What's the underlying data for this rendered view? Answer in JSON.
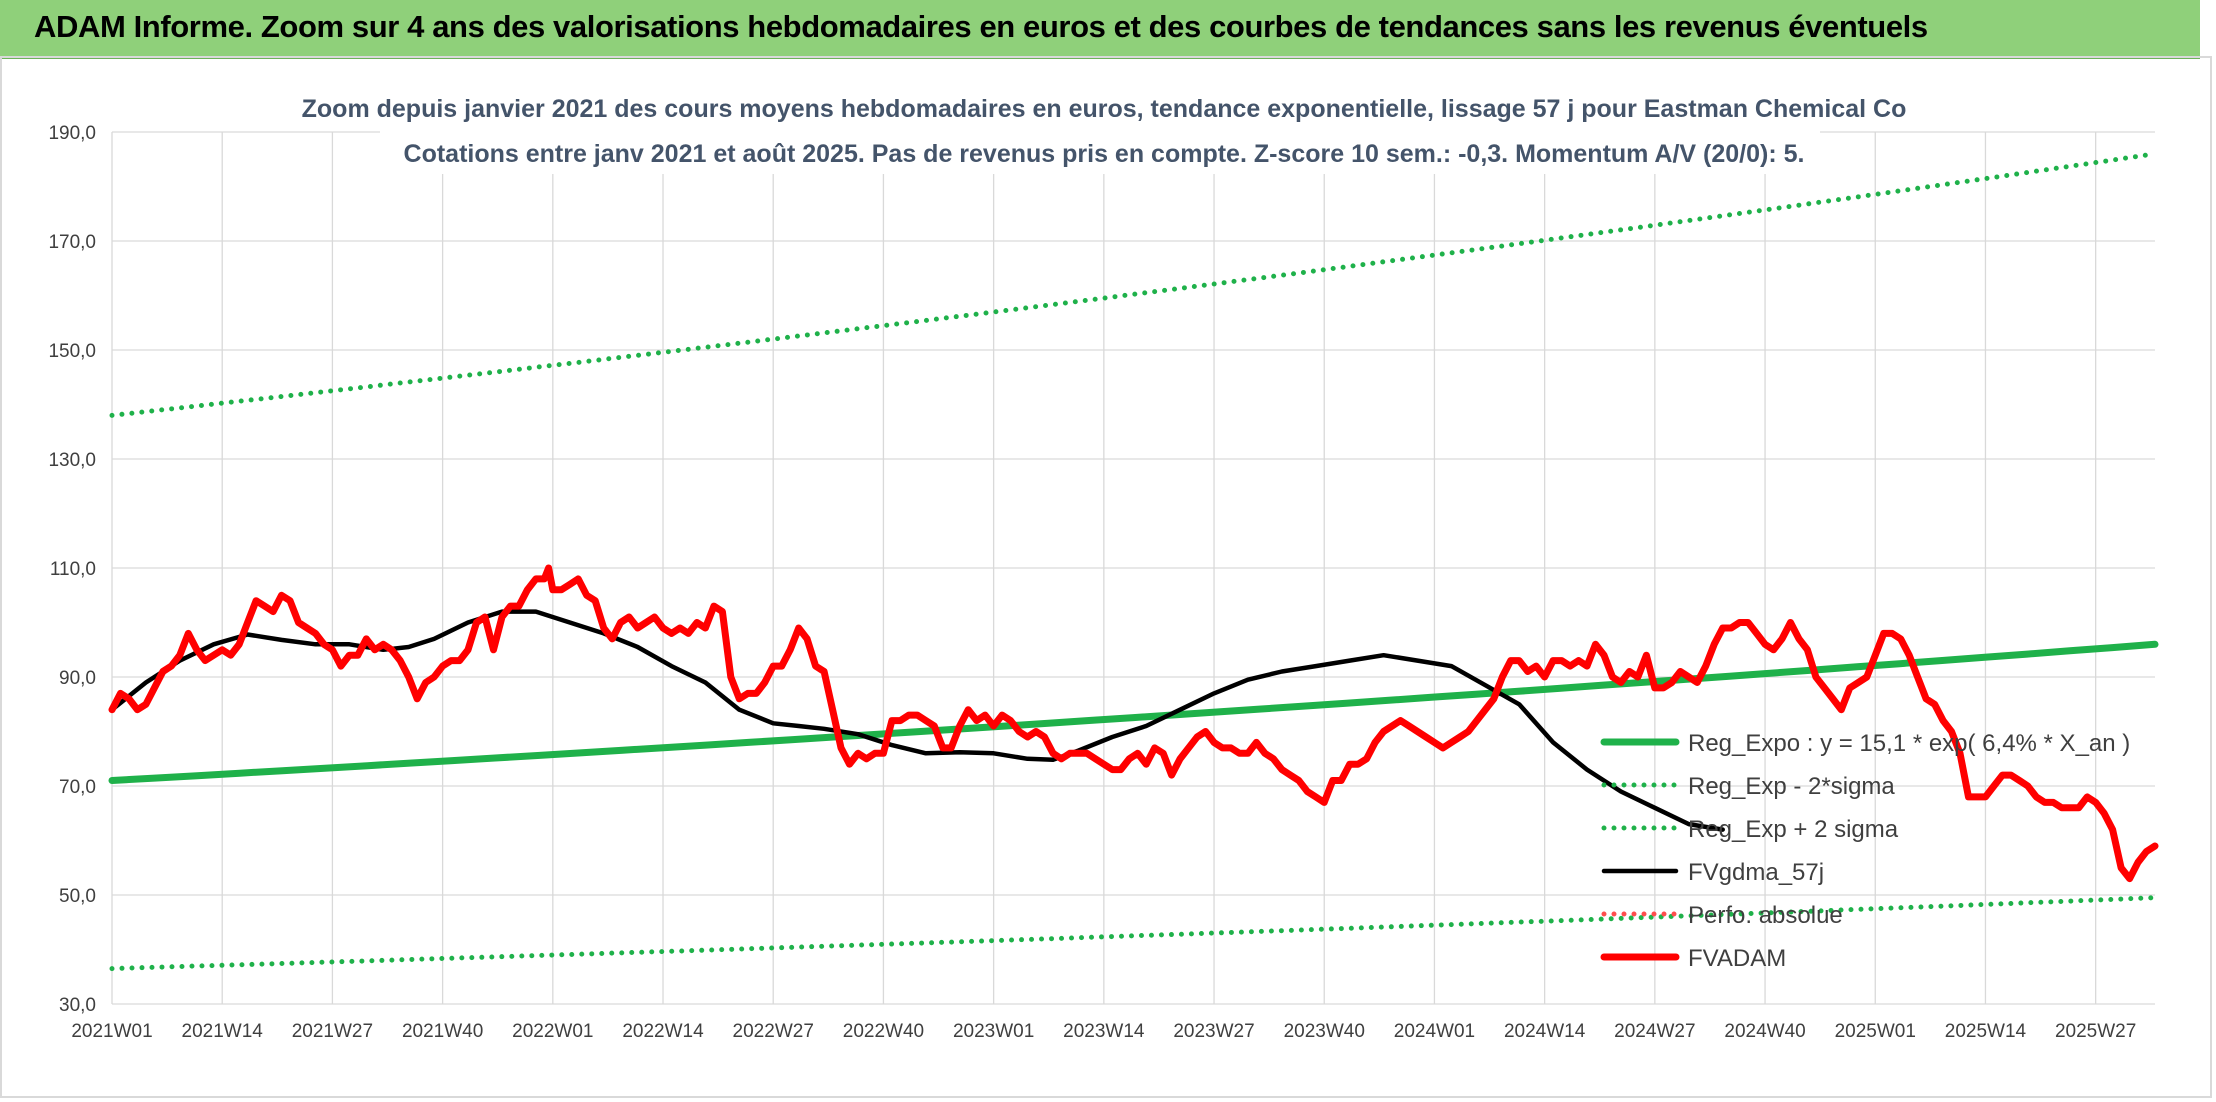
{
  "banner": {
    "title": "ADAM Informe. Zoom sur 4 ans des valorisations hebdomadaires en euros et des courbes de tendances sans les revenus éventuels"
  },
  "chart_data": {
    "type": "line",
    "title_lines": [
      "Zoom depuis janvier 2021 des cours moyens hebdomadaires en euros, tendance exponentielle, lissage 57 j pour Eastman Chemical Co",
      "Cotations entre janv 2021 et août 2025. Pas de revenus pris en compte. Z-score 10 sem.: -0,3. Momentum A/V (20/0): 5."
    ],
    "ylim": [
      30,
      190
    ],
    "yticks": [
      "30,0",
      "50,0",
      "70,0",
      "90,0",
      "110,0",
      "130,0",
      "150,0",
      "170,0",
      "190,0"
    ],
    "x_start": "2021W01",
    "x_end": "2025W34",
    "x_count": 243,
    "xtick_labels": [
      "2021W01",
      "2021W14",
      "2021W27",
      "2021W40",
      "2022W01",
      "2022W14",
      "2022W27",
      "2022W40",
      "2023W01",
      "2023W14",
      "2023W27",
      "2023W40",
      "2024W01",
      "2024W14",
      "2024W27",
      "2024W40",
      "2025W01",
      "2025W14",
      "2025W27"
    ],
    "grid": true,
    "legend_position": "right",
    "series": [
      {
        "name": "Reg_Expo : y = 15,1 * exp( 6,4% *  X_an )",
        "style": "solid-thick",
        "color": "#1fb14a",
        "from": 71.0,
        "to": 96.0
      },
      {
        "name": "Reg_Exp - 2*sigma",
        "style": "dotted",
        "color": "#1fb14a",
        "from": 36.5,
        "to": 49.5
      },
      {
        "name": "Reg_Exp + 2 sigma",
        "style": "dotted",
        "color": "#1fb14a",
        "from": 138.0,
        "to": 186.0
      },
      {
        "name": "FVgdma_57j",
        "style": "solid",
        "color": "#000000",
        "points": [
          [
            0,
            84
          ],
          [
            8,
            89
          ],
          [
            16,
            93
          ],
          [
            24,
            96
          ],
          [
            32,
            97.8
          ],
          [
            40,
            96.8
          ],
          [
            48,
            96
          ],
          [
            56,
            96
          ],
          [
            64,
            95
          ],
          [
            70,
            95.5
          ],
          [
            76,
            97
          ],
          [
            84,
            100
          ],
          [
            92,
            102
          ],
          [
            100,
            102
          ],
          [
            108,
            100
          ],
          [
            116,
            98
          ],
          [
            124,
            95.5
          ],
          [
            132,
            92
          ],
          [
            140,
            89
          ],
          [
            148,
            84
          ],
          [
            156,
            81.5
          ],
          [
            162,
            81
          ],
          [
            168,
            80.5
          ],
          [
            176,
            79.5
          ],
          [
            184,
            77.5
          ],
          [
            192,
            76
          ],
          [
            200,
            76.2
          ],
          [
            208,
            76
          ],
          [
            216,
            75
          ],
          [
            222,
            74.8
          ],
          [
            228,
            76.5
          ],
          [
            236,
            79
          ],
          [
            244,
            81
          ],
          [
            252,
            84
          ],
          [
            260,
            87
          ],
          [
            268,
            89.5
          ],
          [
            276,
            91
          ],
          [
            284,
            92
          ],
          [
            292,
            93
          ],
          [
            300,
            94
          ],
          [
            308,
            93
          ],
          [
            316,
            92
          ],
          [
            324,
            88.5
          ],
          [
            332,
            85
          ],
          [
            340,
            78
          ],
          [
            348,
            73
          ],
          [
            356,
            69
          ],
          [
            364,
            66
          ],
          [
            372,
            63
          ],
          [
            380,
            62
          ]
        ]
      },
      {
        "name": "Perfo. absolue",
        "style": "dotted",
        "color": "#ff4d4d",
        "points": []
      },
      {
        "name": "FVADAM",
        "style": "solid-thick",
        "color": "#ff0000",
        "points": [
          [
            0,
            84
          ],
          [
            2,
            87
          ],
          [
            4,
            86
          ],
          [
            6,
            84
          ],
          [
            8,
            85
          ],
          [
            10,
            88
          ],
          [
            12,
            91
          ],
          [
            14,
            92
          ],
          [
            16,
            94
          ],
          [
            18,
            98
          ],
          [
            20,
            95
          ],
          [
            22,
            93
          ],
          [
            24,
            94
          ],
          [
            26,
            95
          ],
          [
            28,
            94
          ],
          [
            30,
            96
          ],
          [
            32,
            100
          ],
          [
            34,
            104
          ],
          [
            36,
            103
          ],
          [
            38,
            102
          ],
          [
            40,
            105
          ],
          [
            42,
            104
          ],
          [
            44,
            100
          ],
          [
            46,
            99
          ],
          [
            48,
            98
          ],
          [
            50,
            96
          ],
          [
            52,
            95
          ],
          [
            54,
            92
          ],
          [
            56,
            94
          ],
          [
            58,
            94
          ],
          [
            60,
            97
          ],
          [
            62,
            95
          ],
          [
            64,
            96
          ],
          [
            66,
            95
          ],
          [
            68,
            93
          ],
          [
            70,
            90
          ],
          [
            72,
            86
          ],
          [
            74,
            89
          ],
          [
            76,
            90
          ],
          [
            78,
            92
          ],
          [
            80,
            93
          ],
          [
            82,
            93
          ],
          [
            84,
            95
          ],
          [
            86,
            100
          ],
          [
            88,
            101
          ],
          [
            90,
            95
          ],
          [
            92,
            101
          ],
          [
            94,
            103
          ],
          [
            96,
            103
          ],
          [
            98,
            106
          ],
          [
            100,
            108
          ],
          [
            102,
            108
          ],
          [
            103,
            110
          ],
          [
            104,
            106
          ],
          [
            106,
            106
          ],
          [
            108,
            107
          ],
          [
            110,
            108
          ],
          [
            112,
            105
          ],
          [
            114,
            104
          ],
          [
            116,
            99
          ],
          [
            118,
            97
          ],
          [
            120,
            100
          ],
          [
            122,
            101
          ],
          [
            124,
            99
          ],
          [
            126,
            100
          ],
          [
            128,
            101
          ],
          [
            130,
            99
          ],
          [
            132,
            98
          ],
          [
            134,
            99
          ],
          [
            136,
            98
          ],
          [
            138,
            100
          ],
          [
            140,
            99
          ],
          [
            142,
            103
          ],
          [
            144,
            102
          ],
          [
            146,
            90
          ],
          [
            148,
            86
          ],
          [
            150,
            87
          ],
          [
            152,
            87
          ],
          [
            154,
            89
          ],
          [
            156,
            92
          ],
          [
            158,
            92
          ],
          [
            160,
            95
          ],
          [
            162,
            99
          ],
          [
            164,
            97
          ],
          [
            166,
            92
          ],
          [
            168,
            91
          ],
          [
            170,
            84
          ],
          [
            172,
            77
          ],
          [
            174,
            74
          ],
          [
            176,
            76
          ],
          [
            178,
            75
          ],
          [
            180,
            76
          ],
          [
            182,
            76
          ],
          [
            184,
            82
          ],
          [
            186,
            82
          ],
          [
            188,
            83
          ],
          [
            190,
            83
          ],
          [
            192,
            82
          ],
          [
            194,
            81
          ],
          [
            196,
            77
          ],
          [
            198,
            77
          ],
          [
            200,
            81
          ],
          [
            202,
            84
          ],
          [
            204,
            82
          ],
          [
            206,
            83
          ],
          [
            208,
            81
          ],
          [
            210,
            83
          ],
          [
            212,
            82
          ],
          [
            214,
            80
          ],
          [
            216,
            79
          ],
          [
            218,
            80
          ],
          [
            220,
            79
          ],
          [
            222,
            76
          ],
          [
            224,
            75
          ],
          [
            226,
            76
          ],
          [
            228,
            76
          ],
          [
            230,
            76
          ],
          [
            232,
            75
          ],
          [
            234,
            74
          ],
          [
            236,
            73
          ],
          [
            238,
            73
          ],
          [
            240,
            75
          ],
          [
            242,
            76
          ],
          [
            244,
            74
          ],
          [
            246,
            77
          ],
          [
            248,
            76
          ],
          [
            250,
            72
          ],
          [
            252,
            75
          ],
          [
            254,
            77
          ],
          [
            256,
            79
          ],
          [
            258,
            80
          ],
          [
            260,
            78
          ],
          [
            262,
            77
          ],
          [
            264,
            77
          ],
          [
            266,
            76
          ],
          [
            268,
            76
          ],
          [
            270,
            78
          ],
          [
            272,
            76
          ],
          [
            274,
            75
          ],
          [
            276,
            73
          ],
          [
            278,
            72
          ],
          [
            280,
            71
          ],
          [
            282,
            69
          ],
          [
            284,
            68
          ],
          [
            286,
            67
          ],
          [
            288,
            71
          ],
          [
            290,
            71
          ],
          [
            292,
            74
          ],
          [
            294,
            74
          ],
          [
            296,
            75
          ],
          [
            298,
            78
          ],
          [
            300,
            80
          ],
          [
            302,
            81
          ],
          [
            304,
            82
          ],
          [
            306,
            81
          ],
          [
            308,
            80
          ],
          [
            310,
            79
          ],
          [
            312,
            78
          ],
          [
            314,
            77
          ],
          [
            316,
            78
          ],
          [
            318,
            79
          ],
          [
            320,
            80
          ],
          [
            322,
            82
          ],
          [
            324,
            84
          ],
          [
            326,
            86
          ],
          [
            328,
            90
          ],
          [
            330,
            93
          ],
          [
            332,
            93
          ],
          [
            334,
            91
          ],
          [
            336,
            92
          ],
          [
            338,
            90
          ],
          [
            340,
            93
          ],
          [
            342,
            93
          ],
          [
            344,
            92
          ],
          [
            346,
            93
          ],
          [
            348,
            92
          ],
          [
            350,
            96
          ],
          [
            352,
            94
          ],
          [
            354,
            90
          ],
          [
            356,
            89
          ],
          [
            358,
            91
          ],
          [
            360,
            90
          ],
          [
            362,
            94
          ],
          [
            364,
            88
          ],
          [
            366,
            88
          ],
          [
            368,
            89
          ],
          [
            370,
            91
          ],
          [
            372,
            90
          ],
          [
            374,
            89
          ],
          [
            376,
            92
          ],
          [
            378,
            96
          ],
          [
            380,
            99
          ],
          [
            382,
            99
          ],
          [
            384,
            100
          ],
          [
            386,
            100
          ],
          [
            388,
            98
          ],
          [
            390,
            96
          ],
          [
            392,
            95
          ],
          [
            394,
            97
          ],
          [
            396,
            100
          ],
          [
            398,
            97
          ],
          [
            400,
            95
          ],
          [
            402,
            90
          ],
          [
            404,
            88
          ],
          [
            406,
            86
          ],
          [
            408,
            84
          ],
          [
            410,
            88
          ],
          [
            412,
            89
          ],
          [
            414,
            90
          ],
          [
            416,
            94
          ],
          [
            418,
            98
          ],
          [
            420,
            98
          ],
          [
            422,
            97
          ],
          [
            424,
            94
          ],
          [
            426,
            90
          ],
          [
            428,
            86
          ],
          [
            430,
            85
          ],
          [
            432,
            82
          ],
          [
            434,
            80
          ],
          [
            436,
            76
          ],
          [
            438,
            68
          ],
          [
            440,
            68
          ],
          [
            442,
            68
          ],
          [
            444,
            70
          ],
          [
            446,
            72
          ],
          [
            448,
            72
          ],
          [
            450,
            71
          ],
          [
            452,
            70
          ],
          [
            454,
            68
          ],
          [
            456,
            67
          ],
          [
            458,
            67
          ],
          [
            460,
            66
          ],
          [
            462,
            66
          ],
          [
            464,
            66
          ],
          [
            466,
            68
          ],
          [
            468,
            67
          ],
          [
            470,
            65
          ],
          [
            472,
            62
          ],
          [
            474,
            55
          ],
          [
            476,
            53
          ],
          [
            478,
            56
          ],
          [
            480,
            58
          ],
          [
            482,
            59
          ]
        ]
      }
    ]
  }
}
